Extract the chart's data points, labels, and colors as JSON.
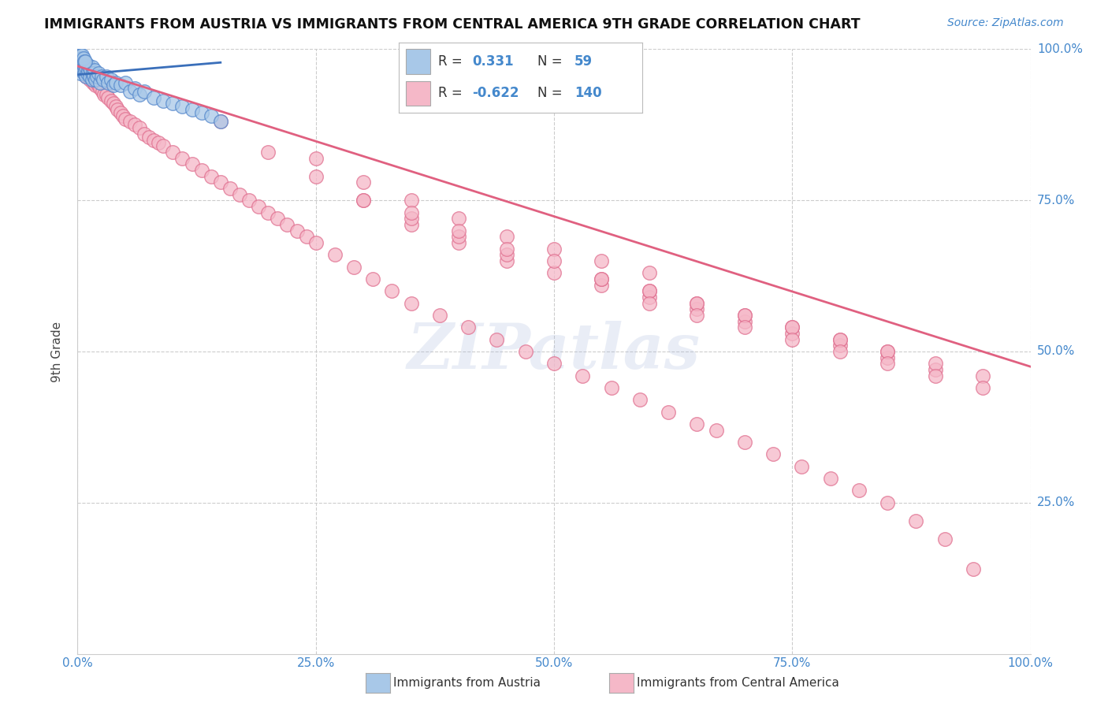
{
  "title": "IMMIGRANTS FROM AUSTRIA VS IMMIGRANTS FROM CENTRAL AMERICA 9TH GRADE CORRELATION CHART",
  "source_text": "Source: ZipAtlas.com",
  "ylabel": "9th Grade",
  "legend_label_blue": "Immigrants from Austria",
  "legend_label_pink": "Immigrants from Central America",
  "blue_R": 0.331,
  "blue_N": 59,
  "pink_R": -0.622,
  "pink_N": 140,
  "watermark": "ZIPatlas",
  "xlim": [
    0.0,
    1.0
  ],
  "ylim": [
    0.0,
    1.0
  ],
  "blue_color": "#a8c8e8",
  "blue_edge_color": "#5588cc",
  "blue_fill_color": "#a8c8e8",
  "pink_color": "#f5b8c8",
  "pink_edge_color": "#e07090",
  "pink_fill_color": "#f5b8c8",
  "blue_line_color": "#3a6fba",
  "pink_line_color": "#e06080",
  "background_color": "#ffffff",
  "grid_color": "#cccccc",
  "title_color": "#111111",
  "source_color": "#4488cc",
  "axis_label_color": "#444444",
  "tick_label_color": "#4488cc",
  "blue_scatter_x": [
    0.001,
    0.002,
    0.002,
    0.003,
    0.003,
    0.004,
    0.004,
    0.005,
    0.005,
    0.006,
    0.006,
    0.007,
    0.007,
    0.008,
    0.008,
    0.009,
    0.009,
    0.01,
    0.01,
    0.011,
    0.012,
    0.013,
    0.014,
    0.015,
    0.015,
    0.016,
    0.017,
    0.018,
    0.019,
    0.02,
    0.022,
    0.024,
    0.025,
    0.027,
    0.03,
    0.032,
    0.035,
    0.038,
    0.04,
    0.045,
    0.05,
    0.055,
    0.06,
    0.065,
    0.07,
    0.08,
    0.09,
    0.1,
    0.11,
    0.12,
    0.13,
    0.14,
    0.003,
    0.004,
    0.005,
    0.006,
    0.007,
    0.008,
    0.15
  ],
  "blue_scatter_y": [
    0.975,
    0.98,
    0.97,
    0.99,
    0.96,
    0.975,
    0.965,
    0.98,
    0.97,
    0.975,
    0.965,
    0.97,
    0.96,
    0.975,
    0.965,
    0.97,
    0.955,
    0.96,
    0.975,
    0.965,
    0.97,
    0.955,
    0.965,
    0.97,
    0.95,
    0.96,
    0.955,
    0.965,
    0.95,
    0.955,
    0.96,
    0.945,
    0.955,
    0.95,
    0.955,
    0.945,
    0.95,
    0.94,
    0.945,
    0.94,
    0.945,
    0.93,
    0.935,
    0.925,
    0.93,
    0.92,
    0.915,
    0.91,
    0.905,
    0.9,
    0.895,
    0.89,
    0.99,
    0.985,
    0.99,
    0.985,
    0.98,
    0.98,
    0.88
  ],
  "pink_scatter_x": [
    0.001,
    0.002,
    0.003,
    0.004,
    0.005,
    0.006,
    0.007,
    0.008,
    0.009,
    0.01,
    0.011,
    0.012,
    0.013,
    0.014,
    0.015,
    0.016,
    0.017,
    0.018,
    0.019,
    0.02,
    0.022,
    0.024,
    0.026,
    0.028,
    0.03,
    0.032,
    0.035,
    0.038,
    0.04,
    0.042,
    0.045,
    0.048,
    0.05,
    0.055,
    0.06,
    0.065,
    0.07,
    0.075,
    0.08,
    0.085,
    0.09,
    0.1,
    0.11,
    0.12,
    0.13,
    0.14,
    0.15,
    0.16,
    0.17,
    0.18,
    0.19,
    0.2,
    0.21,
    0.22,
    0.23,
    0.24,
    0.25,
    0.27,
    0.29,
    0.31,
    0.33,
    0.35,
    0.38,
    0.41,
    0.44,
    0.47,
    0.5,
    0.53,
    0.56,
    0.59,
    0.62,
    0.65,
    0.67,
    0.7,
    0.73,
    0.76,
    0.79,
    0.82,
    0.85,
    0.88,
    0.91,
    0.94,
    0.3,
    0.35,
    0.4,
    0.45,
    0.5,
    0.55,
    0.6,
    0.65,
    0.7,
    0.75,
    0.8,
    0.85,
    0.9,
    0.15,
    0.2,
    0.25,
    0.3,
    0.35,
    0.4,
    0.45,
    0.25,
    0.3,
    0.35,
    0.4,
    0.45,
    0.5,
    0.55,
    0.6,
    0.35,
    0.4,
    0.45,
    0.5,
    0.55,
    0.6,
    0.65,
    0.7,
    0.75,
    0.8,
    0.85,
    0.55,
    0.6,
    0.65,
    0.7,
    0.75,
    0.8,
    0.85,
    0.9,
    0.95,
    0.6,
    0.65,
    0.7,
    0.75,
    0.8,
    0.85,
    0.9,
    0.95
  ],
  "pink_scatter_y": [
    0.975,
    0.975,
    0.97,
    0.965,
    0.97,
    0.965,
    0.96,
    0.965,
    0.955,
    0.965,
    0.955,
    0.96,
    0.95,
    0.955,
    0.955,
    0.945,
    0.95,
    0.945,
    0.94,
    0.945,
    0.94,
    0.935,
    0.93,
    0.925,
    0.925,
    0.92,
    0.915,
    0.91,
    0.905,
    0.9,
    0.895,
    0.89,
    0.885,
    0.88,
    0.875,
    0.87,
    0.86,
    0.855,
    0.85,
    0.845,
    0.84,
    0.83,
    0.82,
    0.81,
    0.8,
    0.79,
    0.78,
    0.77,
    0.76,
    0.75,
    0.74,
    0.73,
    0.72,
    0.71,
    0.7,
    0.69,
    0.68,
    0.66,
    0.64,
    0.62,
    0.6,
    0.58,
    0.56,
    0.54,
    0.52,
    0.5,
    0.48,
    0.46,
    0.44,
    0.42,
    0.4,
    0.38,
    0.37,
    0.35,
    0.33,
    0.31,
    0.29,
    0.27,
    0.25,
    0.22,
    0.19,
    0.14,
    0.75,
    0.71,
    0.68,
    0.65,
    0.63,
    0.61,
    0.59,
    0.57,
    0.55,
    0.53,
    0.51,
    0.49,
    0.47,
    0.88,
    0.83,
    0.79,
    0.75,
    0.72,
    0.69,
    0.66,
    0.82,
    0.78,
    0.75,
    0.72,
    0.69,
    0.67,
    0.65,
    0.63,
    0.73,
    0.7,
    0.67,
    0.65,
    0.62,
    0.6,
    0.58,
    0.56,
    0.54,
    0.52,
    0.5,
    0.62,
    0.6,
    0.58,
    0.56,
    0.54,
    0.52,
    0.5,
    0.48,
    0.46,
    0.58,
    0.56,
    0.54,
    0.52,
    0.5,
    0.48,
    0.46,
    0.44
  ],
  "blue_trendline_x": [
    0.0,
    0.15
  ],
  "blue_trendline_y": [
    0.958,
    0.978
  ],
  "pink_trendline_x": [
    0.0,
    1.0
  ],
  "pink_trendline_y": [
    0.972,
    0.475
  ],
  "ytick_vals": [
    0.0,
    0.25,
    0.5,
    0.75,
    1.0
  ],
  "ytick_labels_right": [
    "",
    "25.0%",
    "50.0%",
    "75.0%",
    "100.0%"
  ],
  "xtick_vals": [
    0.0,
    0.25,
    0.5,
    0.75,
    1.0
  ],
  "xtick_labels": [
    "0.0%",
    "25.0%",
    "50.0%",
    "75.0%",
    "100.0%"
  ]
}
